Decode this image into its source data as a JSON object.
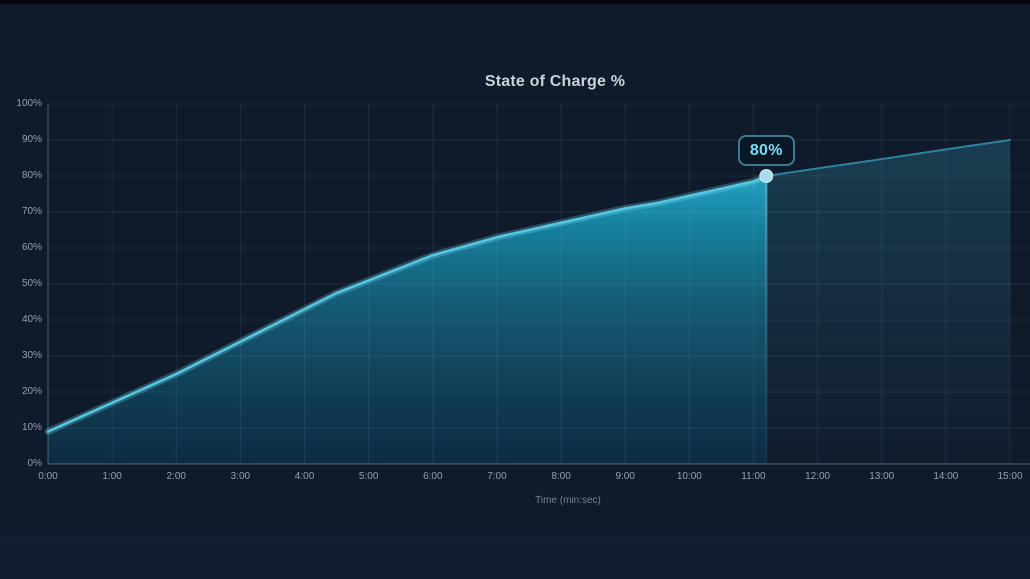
{
  "frame": {
    "background": "#0f1a2a",
    "top_strip_color": "#04070b"
  },
  "chart_data": {
    "type": "area",
    "title": "State of Charge %",
    "xlabel": "Time (min:sec)",
    "ylabel": "",
    "x_ticks": [
      "0:00",
      "1:00",
      "2:00",
      "3:00",
      "4:00",
      "5:00",
      "6:00",
      "7:00",
      "8:00",
      "9:00",
      "10:00",
      "11:00",
      "12:00",
      "13:00",
      "14:00",
      "15:00"
    ],
    "y_ticks": [
      "0%",
      "10%",
      "20%",
      "30%",
      "40%",
      "50%",
      "60%",
      "70%",
      "80%",
      "90%",
      "100%"
    ],
    "xlim": [
      0,
      15
    ],
    "ylim": [
      0,
      100
    ],
    "grid": true,
    "legend_position": "none",
    "series": [
      {
        "name": "state-of-charge-actual",
        "x": [
          0,
          0.5,
          1,
          1.5,
          2,
          2.5,
          3,
          3.5,
          4,
          4.5,
          5,
          5.5,
          6,
          6.5,
          7,
          7.5,
          8,
          8.5,
          9,
          9.5,
          10,
          10.5,
          11,
          11.2
        ],
        "y": [
          9,
          13,
          17,
          21,
          25,
          29.5,
          34,
          38.5,
          43,
          47.5,
          51,
          54.5,
          58,
          60.5,
          63,
          65,
          67,
          69,
          71,
          72.5,
          74.5,
          76.5,
          78.5,
          80
        ]
      },
      {
        "name": "state-of-charge-projected",
        "x": [
          11.2,
          12,
          13,
          14,
          15
        ],
        "y": [
          80,
          82.1,
          84.7,
          87.4,
          90
        ]
      }
    ],
    "marker": {
      "x": 11.2,
      "y": 80,
      "label": "80%"
    }
  },
  "colors": {
    "line": "#54c7e1",
    "line_glow": "rgba(120,215,240,0.28)",
    "projected_line": "#2f819e",
    "fill_stops": [
      "#23a2c0",
      "#15809e",
      "#155a73",
      "#0f3b53",
      "#0d2c41"
    ],
    "proj_fill_top": "rgba(56,150,182,0.28)",
    "proj_fill_bottom": "rgba(56,150,182,0.02)",
    "grid": "rgba(160,195,225,0.10)",
    "axis": "rgba(170,200,228,0.28)",
    "tick_text": "#94a1af",
    "axis_title_text": "#76838f",
    "title_text": "#cbd2d9",
    "tooltip_border": "#3d7a91",
    "tooltip_bg": "#0a1826",
    "tooltip_text": "#7fd9f3",
    "marker_dot": "#a8dcee",
    "marker_dot_ring": "rgba(225,246,252,0.85)",
    "marker_edge_top": "rgba(110,205,230,0.6)",
    "marker_edge_bottom": "rgba(45,115,145,0.15)"
  }
}
